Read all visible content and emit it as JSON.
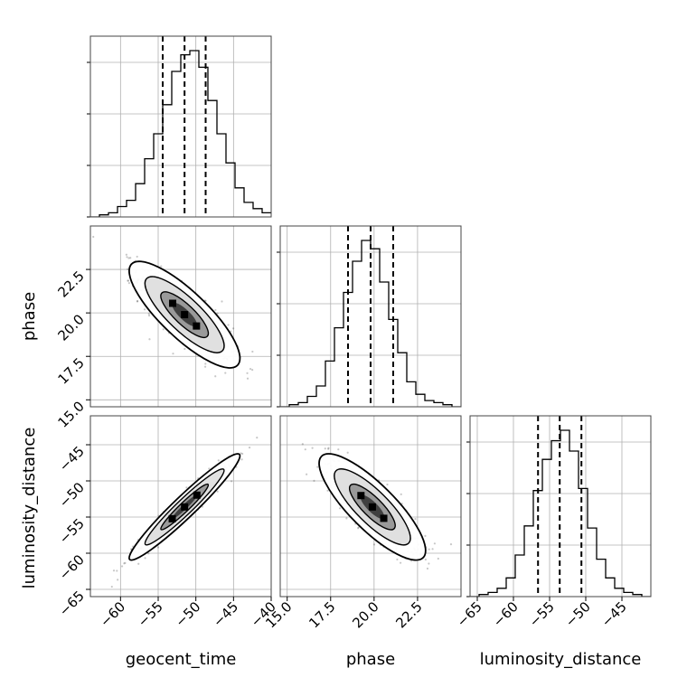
{
  "chart_data": {
    "type": "corner",
    "parameters": [
      "geocent_time",
      "phase",
      "luminosity_distance"
    ],
    "ranges": {
      "geocent_time": [
        -64,
        -40
      ],
      "phase": [
        14.6,
        25.0
      ],
      "luminosity_distance": [
        -66,
        -41
      ]
    },
    "quantiles_dashed": {
      "geocent_time": [
        -54.4,
        -51.5,
        -48.7
      ],
      "phase": [
        18.5,
        19.8,
        21.1
      ],
      "luminosity_distance": [
        -56.6,
        -53.6,
        -50.6
      ]
    },
    "ticks": {
      "geocent_time": {
        "values": [
          -60,
          -55,
          -50,
          -45,
          -40
        ],
        "labels": [
          "−60",
          "−55",
          "−50",
          "−45",
          "−40"
        ]
      },
      "phase": {
        "values": [
          15.0,
          17.5,
          20.0,
          22.5
        ],
        "labels": [
          "15.0",
          "17.5",
          "20.0",
          "22.5"
        ]
      },
      "luminosity_distance": {
        "values": [
          -65,
          -60,
          -55,
          -50,
          -45
        ],
        "labels": [
          "−65",
          "−60",
          "−55",
          "−50",
          "−45"
        ]
      }
    },
    "histograms": {
      "geocent_time": {
        "edges_start": -64,
        "bin_width": 1.2,
        "counts": [
          0,
          1,
          2,
          5,
          8,
          16,
          28,
          40,
          54,
          70,
          78,
          80,
          72,
          56,
          40,
          26,
          14,
          7,
          4,
          2
        ]
      },
      "phase": {
        "edges_start": 14.6,
        "bin_width": 0.52,
        "counts": [
          0,
          1,
          2,
          5,
          10,
          22,
          38,
          55,
          70,
          80,
          76,
          60,
          42,
          26,
          12,
          6,
          3,
          2,
          1,
          0
        ]
      },
      "luminosity_distance": {
        "edges_start": -66,
        "bin_width": 1.25,
        "counts": [
          0,
          1,
          2,
          4,
          9,
          20,
          34,
          51,
          66,
          75,
          80,
          70,
          52,
          33,
          18,
          9,
          4,
          2,
          1,
          0
        ]
      }
    },
    "contours_2d": [
      {
        "x": "geocent_time",
        "y": "phase",
        "mean": [
          -51.5,
          19.9
        ],
        "sd": [
          3.0,
          1.25
        ],
        "corr": -0.82
      },
      {
        "x": "geocent_time",
        "y": "luminosity_distance",
        "mean": [
          -51.5,
          -53.6
        ],
        "sd": [
          3.0,
          3.0
        ],
        "corr": 0.96
      },
      {
        "x": "phase",
        "y": "luminosity_distance",
        "mean": [
          19.9,
          -53.6
        ],
        "sd": [
          1.25,
          3.0
        ],
        "corr": -0.82
      }
    ],
    "grid": true
  }
}
